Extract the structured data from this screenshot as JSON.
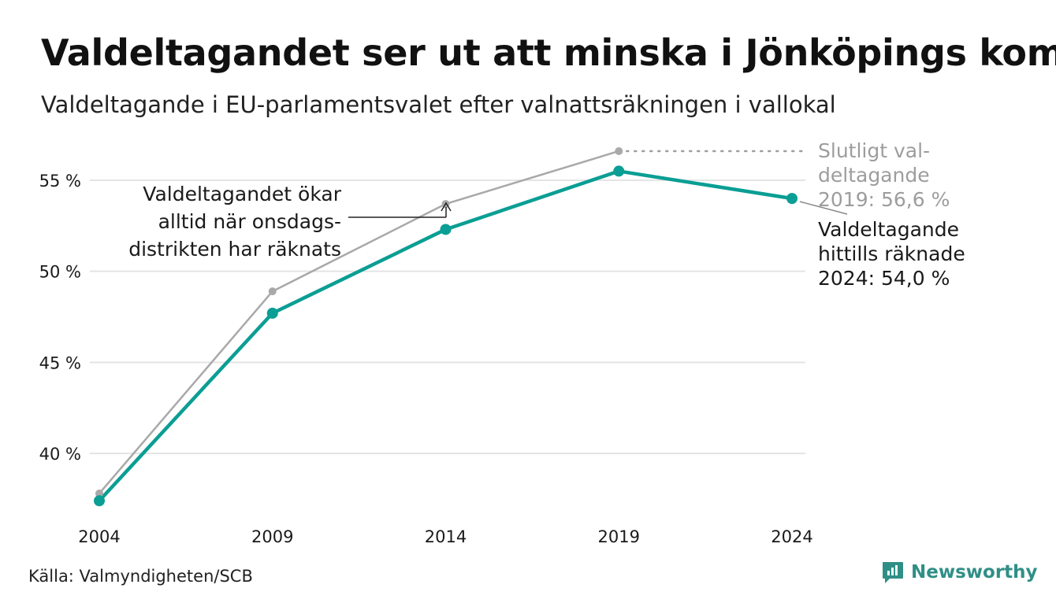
{
  "header": {
    "title": "Valdeltagandet ser ut att minska i Jönköpings kom",
    "subtitle": "Valdeltagande i EU-parlamentsvalet efter valnattsräkningen i vallokal"
  },
  "footer": {
    "source": "Källa: Valmyndigheten/SCB",
    "brand": "Newsworthy"
  },
  "colors": {
    "final": "#a9a9a9",
    "election_night": "#0a9e94",
    "grid": "#e4e4e4",
    "text": "#1a1a1a",
    "annotation_final": "#9d9d9d"
  },
  "chart_data": {
    "type": "line",
    "categories": [
      "2004",
      "2009",
      "2014",
      "2019",
      "2024"
    ],
    "ylim": [
      37,
      57
    ],
    "yticks": [
      40,
      45,
      50,
      55
    ],
    "ytick_labels": [
      "40 %",
      "45 %",
      "50 %",
      "55 %"
    ],
    "grid": true,
    "series": [
      {
        "key": "final",
        "values": [
          37.8,
          48.9,
          53.7,
          56.6,
          null
        ]
      },
      {
        "key": "election_night",
        "values": [
          37.4,
          47.7,
          52.3,
          55.5,
          54.0
        ]
      }
    ],
    "annotations": {
      "increase": [
        "Valdeltagandet ökar",
        "alltid när onsdags-",
        "distrikten har räknats"
      ],
      "final_2019": [
        "Slutligt val-",
        "deltagande",
        "2019: 56,6 %"
      ],
      "current_2024": [
        "Valdeltagande",
        "hittills räknade",
        "2024: 54,0 %"
      ]
    }
  }
}
